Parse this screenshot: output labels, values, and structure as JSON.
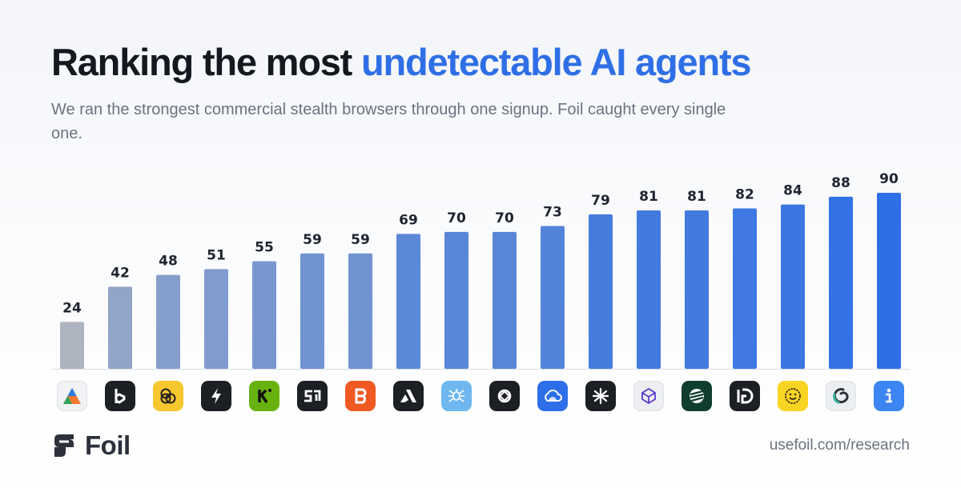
{
  "header": {
    "title_main": "Ranking the most ",
    "title_accent": "undetectable AI agents",
    "subtitle": "We ran the strongest commercial stealth browsers through one signup. Foil caught every single one."
  },
  "colors": {
    "accent": "#2f6fe6",
    "bar_low": "#adb4bf",
    "bar_high": "#2f6fe6"
  },
  "chart_data": {
    "type": "bar",
    "title": "",
    "xlabel": "",
    "ylabel": "",
    "grid": false,
    "legend": "none",
    "values": [
      24,
      42,
      48,
      51,
      55,
      59,
      59,
      69,
      70,
      70,
      73,
      79,
      81,
      81,
      82,
      84,
      88,
      90
    ],
    "ylim": [
      0,
      100
    ]
  },
  "icons": [
    {
      "name": "triangle-logo-icon"
    },
    {
      "name": "b-logo-icon"
    },
    {
      "name": "circles-logo-icon"
    },
    {
      "name": "lightning-logo-icon"
    },
    {
      "name": "k-logo-icon"
    },
    {
      "name": "s-logo-icon"
    },
    {
      "name": "b-orange-logo-icon"
    },
    {
      "name": "a-logo-icon"
    },
    {
      "name": "spider-logo-icon"
    },
    {
      "name": "ring-logo-icon"
    },
    {
      "name": "cloud-logo-icon"
    },
    {
      "name": "burst-logo-icon"
    },
    {
      "name": "cube-logo-icon"
    },
    {
      "name": "globe-logo-icon"
    },
    {
      "name": "d-logo-icon"
    },
    {
      "name": "smiley-logo-icon"
    },
    {
      "name": "swirl-logo-icon"
    },
    {
      "name": "info-logo-icon"
    }
  ],
  "footer": {
    "brand": "Foil",
    "url": "usefoil.com/research"
  }
}
